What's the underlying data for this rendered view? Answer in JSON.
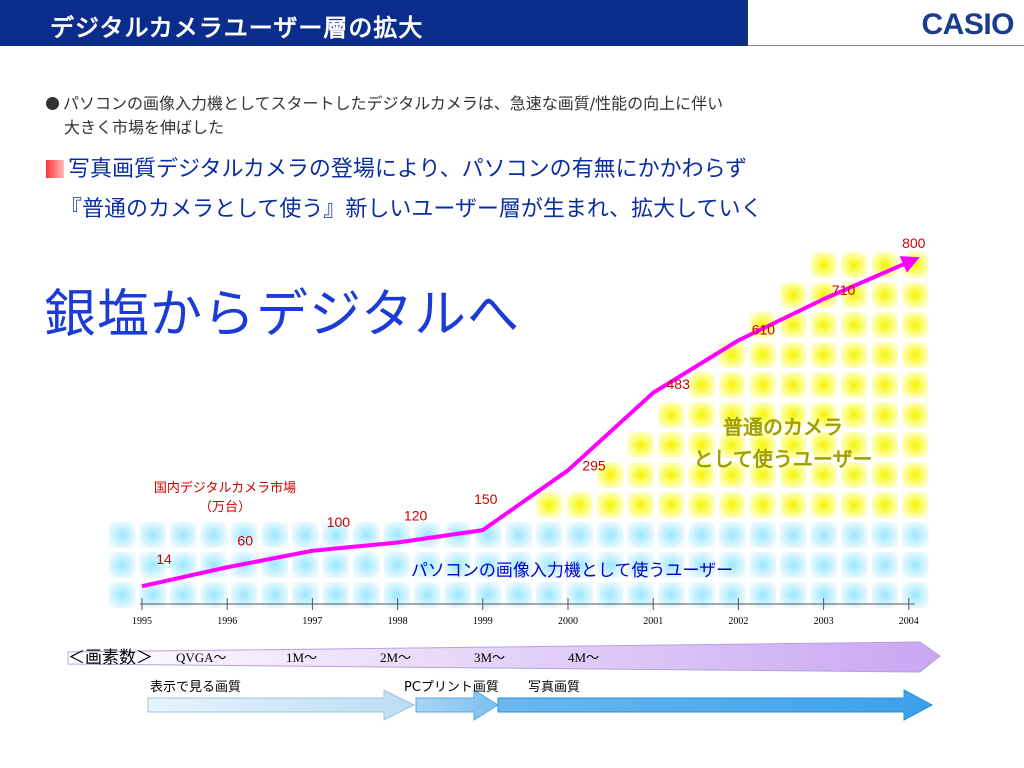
{
  "header": {
    "title": "デジタルカメラユーザー層の拡大",
    "logo": "CASIO"
  },
  "bullets": {
    "b1_line1": "パソコンの画像入力機としてスタートしたデジタルカメラは、急速な画質/性能の向上に伴い",
    "b1_line2": "大きく市場を伸ばした",
    "b2_line1": "写真画質デジタルカメラの登場により、パソコンの有無にかかわらず",
    "b2_line2": "『普通のカメラとして使う』新しいユーザー層が生まれ、拡大していく"
  },
  "headline": "銀塩からデジタルへ",
  "chart_data": {
    "type": "line",
    "x": [
      "1995",
      "1996",
      "1997",
      "1998",
      "1999",
      "2000",
      "2001",
      "2002",
      "2003",
      "2004"
    ],
    "series": [
      {
        "name": "国内デジタルカメラ市場（万台）",
        "values": [
          14,
          60,
          100,
          120,
          150,
          295,
          483,
          610,
          710,
          800
        ]
      }
    ],
    "ylim": [
      0,
      800
    ],
    "series_label_line1": "国内デジタルカメラ市場",
    "series_label_line2": "（万台）",
    "annotations": {
      "pc_users": "パソコンの画像入力機として使うユーザー",
      "camera_users_line1": "普通のカメラ",
      "camera_users_line2": "として使うユーザー"
    },
    "colors": {
      "line": "#ff00ff",
      "label": "#cc0000",
      "pc_users": "#0000cc",
      "camera_users": "#a0a000"
    }
  },
  "pixel_band": {
    "title": "＜画素数＞",
    "levels": [
      "QVGA〜",
      "1M〜",
      "2M〜",
      "3M〜",
      "4M〜"
    ]
  },
  "quality_band": {
    "labels": [
      "表示で見る画質",
      "PCプリント画質",
      "写真画質"
    ]
  }
}
